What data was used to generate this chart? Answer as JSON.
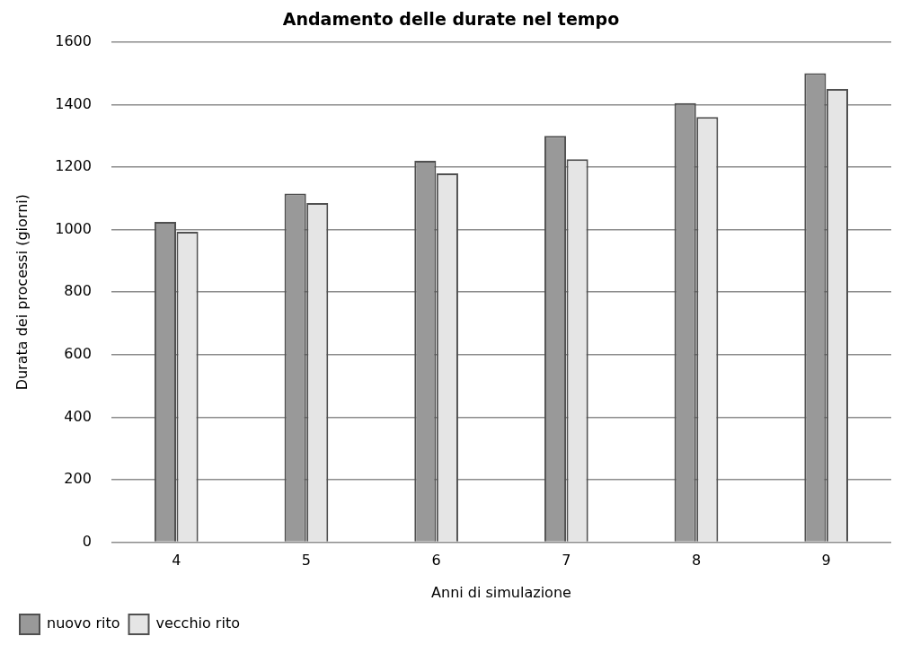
{
  "chart_data": {
    "type": "bar",
    "title": "Andamento delle durate nel tempo",
    "xlabel": "Anni di simulazione",
    "ylabel": "Durata dei processi (giorni)",
    "categories": [
      "4",
      "5",
      "6",
      "7",
      "8",
      "9"
    ],
    "series": [
      {
        "name": "nuovo rito",
        "color": "#999999",
        "values": [
          1025,
          1115,
          1220,
          1300,
          1405,
          1500
        ]
      },
      {
        "name": "vecchio rito",
        "color": "#e5e5e5",
        "values": [
          993,
          1085,
          1180,
          1225,
          1360,
          1450
        ]
      }
    ],
    "ylim": [
      0,
      1600
    ],
    "yticks": [
      0,
      200,
      400,
      600,
      800,
      1000,
      1200,
      1400,
      1600
    ],
    "grid": "y",
    "legend": "bottom left"
  }
}
